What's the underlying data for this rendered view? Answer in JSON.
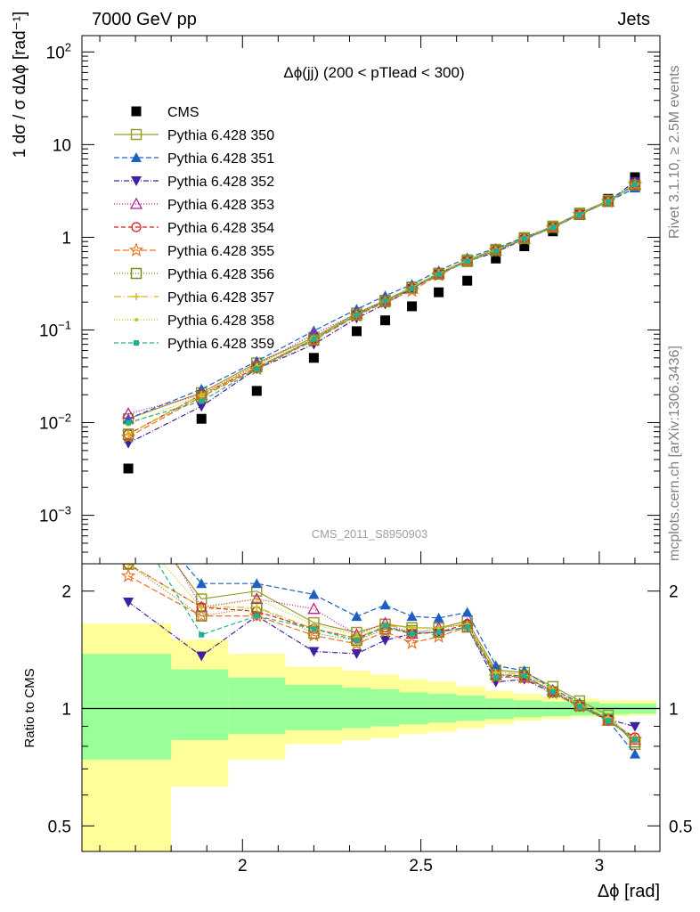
{
  "header": {
    "left": "7000 GeV pp",
    "right": "Jets"
  },
  "side_labels": {
    "right_top": "Rivet 3.1.10, ≥ 2.5M events",
    "right_bottom": "mcplots.cern.ch [arXiv:1306.3436]"
  },
  "watermark": "CMS_2011_S8950903",
  "chart_data": [
    {
      "type": "scatter",
      "title": "Δϕ(jj) (200 < pTlead <  300)",
      "ylabel": "1 dσ / σ dΔϕ [rad⁻¹]",
      "yscale": "log",
      "ylim": [
        0.0003,
        150
      ],
      "xlim": [
        1.55,
        3.17
      ],
      "yticks": [
        {
          "v": 0.001,
          "b": "10",
          "e": "−3"
        },
        {
          "v": 0.01,
          "b": "10",
          "e": "−2"
        },
        {
          "v": 0.1,
          "b": "10",
          "e": "−1"
        },
        {
          "v": 1,
          "b": "1",
          "e": ""
        },
        {
          "v": 10,
          "b": "10",
          "e": ""
        },
        {
          "v": 100,
          "b": "10",
          "e": "2"
        }
      ],
      "legend_position": "top-left",
      "x": [
        1.68,
        1.885,
        2.04,
        2.2,
        2.32,
        2.4,
        2.475,
        2.55,
        2.63,
        2.71,
        2.79,
        2.87,
        2.945,
        3.025,
        3.1
      ],
      "series": [
        {
          "name": "CMS",
          "color": "#000000",
          "marker": "square-filled",
          "values": [
            0.0032,
            0.011,
            0.022,
            0.05,
            0.097,
            0.127,
            0.18,
            0.255,
            0.34,
            0.59,
            0.8,
            1.16,
            1.74,
            2.6,
            4.45
          ]
        },
        {
          "name": "Pythia 6.428 350",
          "color": "#9a9a2a",
          "marker": "square-open",
          "dash": "",
          "values": [
            0.011,
            0.021,
            0.044,
            0.083,
            0.152,
            0.209,
            0.29,
            0.41,
            0.57,
            0.74,
            0.99,
            1.32,
            1.82,
            2.5,
            3.6
          ]
        },
        {
          "name": "Pythia 6.428 351",
          "color": "#1f5fbf",
          "marker": "triangle-up-filled",
          "dash": "6,3",
          "values": [
            0.011,
            0.023,
            0.046,
            0.098,
            0.167,
            0.234,
            0.31,
            0.435,
            0.6,
            0.76,
            1.0,
            1.3,
            1.8,
            2.42,
            3.4
          ]
        },
        {
          "name": "Pythia 6.428 352",
          "color": "#4020a0",
          "marker": "triangle-down-filled",
          "dash": "6,2,1,2",
          "values": [
            0.006,
            0.015,
            0.038,
            0.07,
            0.134,
            0.19,
            0.28,
            0.4,
            0.55,
            0.69,
            0.95,
            1.27,
            1.76,
            2.44,
            4.0
          ]
        },
        {
          "name": "Pythia 6.428 353",
          "color": "#c01a8e",
          "marker": "triangle-up-open",
          "dash": "1,2",
          "values": [
            0.0125,
            0.02,
            0.042,
            0.09,
            0.15,
            0.21,
            0.28,
            0.41,
            0.56,
            0.72,
            0.96,
            1.29,
            1.77,
            2.42,
            3.7
          ]
        },
        {
          "name": "Pythia 6.428 354",
          "color": "#d91a1a",
          "marker": "circle-open",
          "dash": "5,3",
          "values": [
            0.0075,
            0.02,
            0.039,
            0.08,
            0.147,
            0.205,
            0.28,
            0.4,
            0.56,
            0.72,
            0.97,
            1.28,
            1.76,
            2.42,
            3.75
          ]
        },
        {
          "name": "Pythia 6.428 355",
          "color": "#f07020",
          "marker": "star-open",
          "dash": "7,3",
          "values": [
            0.007,
            0.019,
            0.038,
            0.077,
            0.142,
            0.2,
            0.265,
            0.39,
            0.55,
            0.71,
            0.96,
            1.27,
            1.76,
            2.43,
            3.7
          ]
        },
        {
          "name": "Pythia 6.428 356",
          "color": "#7a8a1a",
          "marker": "square-open",
          "dash": "1,2",
          "values": [
            0.0075,
            0.019,
            0.04,
            0.078,
            0.145,
            0.203,
            0.285,
            0.4,
            0.55,
            0.72,
            0.97,
            1.28,
            1.77,
            2.44,
            3.65
          ]
        },
        {
          "name": "Pythia 6.428 357",
          "color": "#d8b818",
          "marker": "plus-small",
          "dash": "8,3,1,3",
          "values": [
            0.0075,
            0.02,
            0.04,
            0.08,
            0.147,
            0.207,
            0.29,
            0.41,
            0.56,
            0.73,
            0.98,
            1.3,
            1.78,
            2.46,
            3.7
          ]
        },
        {
          "name": "Pythia 6.428 358",
          "color": "#c0c820",
          "marker": "dot-small",
          "dash": "1,2",
          "values": [
            0.0095,
            0.02,
            0.042,
            0.082,
            0.15,
            0.21,
            0.29,
            0.41,
            0.56,
            0.73,
            0.98,
            1.3,
            1.78,
            2.46,
            3.7
          ]
        },
        {
          "name": "Pythia 6.428 359",
          "color": "#20b090",
          "marker": "square-small",
          "dash": "5,3",
          "values": [
            0.01,
            0.017,
            0.038,
            0.08,
            0.145,
            0.207,
            0.28,
            0.4,
            0.55,
            0.71,
            0.97,
            1.28,
            1.76,
            2.42,
            3.7
          ]
        }
      ]
    },
    {
      "type": "scatter",
      "ylabel": "Ratio to CMS",
      "yscale": "log",
      "ylim": [
        0.43,
        2.35
      ],
      "xlim": [
        1.55,
        3.17
      ],
      "xlabel": "Δϕ [rad]",
      "yticks": [
        {
          "v": 0.5,
          "label": "0.5"
        },
        {
          "v": 1,
          "label": "1"
        },
        {
          "v": 2,
          "label": "2"
        }
      ],
      "xticks": [
        {
          "v": 2,
          "label": "2"
        },
        {
          "v": 2.5,
          "label": "2.5"
        },
        {
          "v": 3,
          "label": "3"
        }
      ],
      "reference_line": 1,
      "uncertainty_bands": {
        "edges": [
          1.55,
          1.8,
          1.96,
          2.12,
          2.28,
          2.36,
          2.44,
          2.52,
          2.6,
          2.68,
          2.76,
          2.84,
          2.92,
          3.0,
          3.08,
          3.16
        ],
        "stat_lo": [
          0.74,
          0.83,
          0.86,
          0.88,
          0.89,
          0.9,
          0.91,
          0.92,
          0.93,
          0.94,
          0.95,
          0.955,
          0.96,
          0.965,
          0.97
        ],
        "stat_hi": [
          1.38,
          1.26,
          1.2,
          1.15,
          1.13,
          1.12,
          1.1,
          1.09,
          1.08,
          1.06,
          1.05,
          1.04,
          1.04,
          1.03,
          1.03
        ],
        "syst_lo": [
          0.3,
          0.63,
          0.74,
          0.81,
          0.83,
          0.84,
          0.86,
          0.87,
          0.89,
          0.91,
          0.93,
          0.94,
          0.95,
          0.955,
          0.96
        ],
        "syst_hi": [
          1.65,
          1.5,
          1.38,
          1.28,
          1.25,
          1.22,
          1.19,
          1.17,
          1.14,
          1.11,
          1.09,
          1.07,
          1.06,
          1.05,
          1.05
        ],
        "stat_color": "#99ff99",
        "syst_color": "#ffff99"
      }
    }
  ]
}
